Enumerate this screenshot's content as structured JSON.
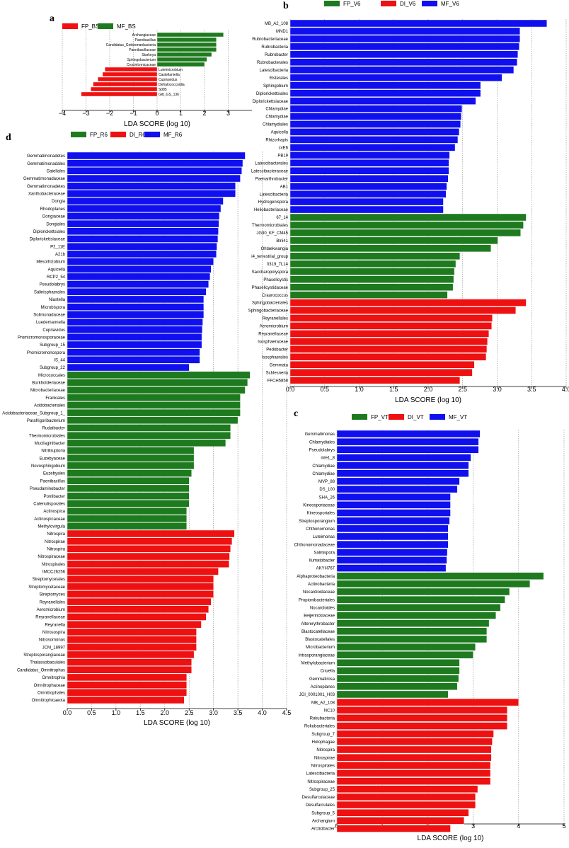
{
  "colors": {
    "FP": "#1e7a1e",
    "DI": "#ee1111",
    "MF": "#1010ee"
  },
  "chart_data": [
    {
      "type": "bar",
      "panel": "a",
      "orientation": "horizontal",
      "legend": [
        {
          "name": "FP_BS",
          "color": "#ee1111"
        },
        {
          "name": "MF_BS",
          "color": "#1e7a1e"
        }
      ],
      "xlabel": "LDA SCORE (log 10)",
      "xlim": [
        -4,
        4
      ],
      "ticks": [
        -4,
        -3,
        -2,
        -1,
        0,
        1,
        2,
        3
      ],
      "grid": true,
      "categories": [
        "Archangiaceae",
        "Paenibacillus",
        "Candidatus_Gottesmanbacteria",
        "Paenibacillaceae",
        "Starkeya",
        "Sphingobacterium",
        "Crocinitomicaceae",
        "Luteimicrobium",
        "Castellaniella",
        "Cupriavidus",
        "Dehalococcoidia",
        "S085",
        "Gitt_GS_136"
      ],
      "values": [
        2.8,
        2.5,
        2.5,
        2.5,
        2.3,
        2.1,
        2.0,
        -2.2,
        -2.3,
        -2.5,
        -2.7,
        -2.8,
        -3.2
      ],
      "colors": [
        "#1e7a1e",
        "#1e7a1e",
        "#1e7a1e",
        "#1e7a1e",
        "#1e7a1e",
        "#1e7a1e",
        "#1e7a1e",
        "#ee1111",
        "#ee1111",
        "#ee1111",
        "#ee1111",
        "#ee1111",
        "#ee1111"
      ]
    },
    {
      "type": "bar",
      "panel": "b",
      "orientation": "horizontal",
      "legend": [
        {
          "name": "FP_V6",
          "color": "#1e7a1e"
        },
        {
          "name": "DI_V6",
          "color": "#ee1111"
        },
        {
          "name": "MF_V6",
          "color": "#1010ee"
        }
      ],
      "xlabel": "LDA SCORE (log 10)",
      "xlim": [
        0,
        4
      ],
      "ticks": [
        "0.0",
        "0.5",
        "1.0",
        "1.5",
        "2.0",
        "2.5",
        "3.0",
        "3.5",
        "4.0"
      ],
      "grid": true,
      "categories": [
        "MB_A2_108",
        "MND1",
        "Rubrobacteriaceae",
        "Rubrobacteria",
        "Rubrobacter",
        "Rubrobacterales",
        "Latescibacteria",
        "Elsterales",
        "Sphingobium",
        "Diplorickettsiales",
        "Diplorickettsiaceae",
        "Chlamydiae",
        "Chlamydiae",
        "Chlamydiales",
        "Aquicella",
        "Rhizorhapis",
        "cvE6",
        "PB19",
        "Latescibacterales",
        "Latescibacteraceae",
        "Paenarthrobacter",
        "AB1",
        "Latescibacteria",
        "Hydrogenispora",
        "Heliobacteriaceae",
        "67_14",
        "Thermomicrobiales",
        "JG30_KF_CM45",
        "Blrii41",
        "Ohtaekwangia",
        "i4_terrestrial_group",
        "0319_7L14",
        "Saccharopolyspora",
        "Phaselicystis",
        "Phaselicystidaceae",
        "Craurococcus",
        "Sphingobacteriales",
        "Sphingobacteriaceae",
        "Reyranellales",
        "Aeromicrobium",
        "Reyranellaceae",
        "Isosphaeraceae",
        "Pedobacter",
        "Isosphaerales",
        "Gemmata",
        "Schlesneria",
        "FFCH5858"
      ],
      "values": [
        3.72,
        3.33,
        3.33,
        3.32,
        3.3,
        3.29,
        3.24,
        3.07,
        2.76,
        2.76,
        2.69,
        2.49,
        2.48,
        2.47,
        2.45,
        2.43,
        2.39,
        2.31,
        2.3,
        2.3,
        2.29,
        2.27,
        2.26,
        2.22,
        2.22,
        3.42,
        3.38,
        3.34,
        3.01,
        2.91,
        2.46,
        2.4,
        2.38,
        2.37,
        2.36,
        2.28,
        3.42,
        3.27,
        2.93,
        2.92,
        2.88,
        2.86,
        2.85,
        2.84,
        2.67,
        2.64,
        2.46
      ],
      "colors": [
        "#1010ee",
        "#1010ee",
        "#1010ee",
        "#1010ee",
        "#1010ee",
        "#1010ee",
        "#1010ee",
        "#1010ee",
        "#1010ee",
        "#1010ee",
        "#1010ee",
        "#1010ee",
        "#1010ee",
        "#1010ee",
        "#1010ee",
        "#1010ee",
        "#1010ee",
        "#1010ee",
        "#1010ee",
        "#1010ee",
        "#1010ee",
        "#1010ee",
        "#1010ee",
        "#1010ee",
        "#1010ee",
        "#1e7a1e",
        "#1e7a1e",
        "#1e7a1e",
        "#1e7a1e",
        "#1e7a1e",
        "#1e7a1e",
        "#1e7a1e",
        "#1e7a1e",
        "#1e7a1e",
        "#1e7a1e",
        "#1e7a1e",
        "#ee1111",
        "#ee1111",
        "#ee1111",
        "#ee1111",
        "#ee1111",
        "#ee1111",
        "#ee1111",
        "#ee1111",
        "#ee1111",
        "#ee1111",
        "#ee1111"
      ]
    },
    {
      "type": "bar",
      "panel": "d",
      "orientation": "horizontal",
      "legend": [
        {
          "name": "FP_R6",
          "color": "#1e7a1e"
        },
        {
          "name": "DI_R6",
          "color": "#ee1111"
        },
        {
          "name": "MF_R6",
          "color": "#1010ee"
        }
      ],
      "xlabel": "LDA SCORE (log 10)",
      "xlim": [
        0,
        4.5
      ],
      "ticks": [
        "0.0",
        "0.5",
        "1.0",
        "1.5",
        "2.0",
        "2.5",
        "3.0",
        "3.5",
        "4.0",
        "4.5"
      ],
      "grid": true,
      "categories": [
        "Gemmatimonadetes",
        "Gemmatimonadales",
        "Gaiellales",
        "Gemmatimonadaceae",
        "Gemmatimonadetes",
        "Xanthobacteraceae",
        "Dongia",
        "Rhodoplanes",
        "Dongiaceae",
        "Dongiales",
        "Diplorickettsiales",
        "Diplorickettsiaceae",
        "P2_11E",
        "A21b",
        "Mesorhizobium",
        "Aquicella",
        "RCP2_54",
        "Pseudolabrys",
        "Salinisphaerales",
        "Niastella",
        "Microbispora",
        "Solimonadaceae",
        "Luedemannella",
        "Cupriavidus",
        "Promicromonosporaceae",
        "Subgroup_15",
        "Promicromonospora",
        "IS_44",
        "Subgroup_22",
        "Micrococcales",
        "Burkholderiaceae",
        "Microbacteriaceae",
        "Frankiales",
        "Acidobacteriales",
        "Acidobacteriaceae_Subgroup_1_",
        "Parafrigoribacterium",
        "Rudaibacter",
        "Thermomicrobiales",
        "Mucilaginibacter",
        "Nitriliruptoria",
        "Euzebyaceae",
        "Novosphingobium",
        "Euzebyales",
        "Paenibacillus",
        "Pseudaminobacter",
        "Pontibacter",
        "Catenulisporales",
        "Actinospica",
        "Actinospicaceae",
        "Methylovirgula",
        "Nitrospira",
        "Nitrospirae",
        "Nitrospira",
        "Nitrospiraceae",
        "Nitrospirales",
        "IMCC26256",
        "Streptomycetales",
        "Streptomycetaceae",
        "Streptomyces",
        "Reyranellales",
        "Aeromicrobium",
        "Reyranellaceae",
        "Reyranella",
        "Nitrosospira",
        "Nitrosomonas",
        "JCM_18997",
        "Streptosporangiaceae",
        "Thalassobaculales",
        "Candidatus_Omnitrophus",
        "Omnitrophia",
        "Omnitrophaceae",
        "Omnitrophales",
        "Omnitrophicaeota"
      ],
      "values": [
        3.65,
        3.6,
        3.58,
        3.55,
        3.45,
        3.45,
        3.2,
        3.15,
        3.12,
        3.11,
        3.1,
        3.09,
        3.07,
        3.06,
        3.0,
        2.95,
        2.93,
        2.9,
        2.85,
        2.8,
        2.8,
        2.8,
        2.78,
        2.77,
        2.76,
        2.76,
        2.72,
        2.72,
        2.5,
        3.75,
        3.7,
        3.65,
        3.55,
        3.55,
        3.55,
        3.5,
        3.35,
        3.35,
        3.25,
        2.6,
        2.6,
        2.6,
        2.55,
        2.5,
        2.5,
        2.5,
        2.5,
        2.45,
        2.45,
        2.45,
        3.43,
        3.38,
        3.35,
        3.33,
        3.32,
        3.1,
        3.0,
        3.0,
        3.0,
        2.95,
        2.9,
        2.85,
        2.75,
        2.65,
        2.65,
        2.65,
        2.6,
        2.55,
        2.55,
        2.45,
        2.45,
        2.45,
        2.4
      ],
      "colors": [
        "#1010ee",
        "#1010ee",
        "#1010ee",
        "#1010ee",
        "#1010ee",
        "#1010ee",
        "#1010ee",
        "#1010ee",
        "#1010ee",
        "#1010ee",
        "#1010ee",
        "#1010ee",
        "#1010ee",
        "#1010ee",
        "#1010ee",
        "#1010ee",
        "#1010ee",
        "#1010ee",
        "#1010ee",
        "#1010ee",
        "#1010ee",
        "#1010ee",
        "#1010ee",
        "#1010ee",
        "#1010ee",
        "#1010ee",
        "#1010ee",
        "#1010ee",
        "#1010ee",
        "#1e7a1e",
        "#1e7a1e",
        "#1e7a1e",
        "#1e7a1e",
        "#1e7a1e",
        "#1e7a1e",
        "#1e7a1e",
        "#1e7a1e",
        "#1e7a1e",
        "#1e7a1e",
        "#1e7a1e",
        "#1e7a1e",
        "#1e7a1e",
        "#1e7a1e",
        "#1e7a1e",
        "#1e7a1e",
        "#1e7a1e",
        "#1e7a1e",
        "#1e7a1e",
        "#1e7a1e",
        "#1e7a1e",
        "#ee1111",
        "#ee1111",
        "#ee1111",
        "#ee1111",
        "#ee1111",
        "#ee1111",
        "#ee1111",
        "#ee1111",
        "#ee1111",
        "#ee1111",
        "#ee1111",
        "#ee1111",
        "#ee1111",
        "#ee1111",
        "#ee1111",
        "#ee1111",
        "#ee1111",
        "#ee1111",
        "#ee1111",
        "#ee1111",
        "#ee1111",
        "#ee1111",
        "#ee1111"
      ]
    },
    {
      "type": "bar",
      "panel": "c",
      "orientation": "horizontal",
      "legend": [
        {
          "name": "FP_VT",
          "color": "#1e7a1e"
        },
        {
          "name": "DI_VT",
          "color": "#ee1111"
        },
        {
          "name": "MF_VT",
          "color": "#1010ee"
        }
      ],
      "xlabel": "LDA SCORE (log 10)",
      "xlim": [
        0,
        5
      ],
      "ticks": [
        "0",
        "1",
        "2",
        "3",
        "4",
        "5"
      ],
      "grid": true,
      "categories": [
        "Gemmatimonas",
        "Chlamydiales",
        "Pseudolabrys",
        "mle1_8",
        "Chlamydiae",
        "Chlamydiae",
        "MVP_88",
        "DS_100",
        "SHA_26",
        "Kineosporiaceae",
        "Kineosporiales",
        "Streptosporangium",
        "Chthonomonas",
        "Luteimonas",
        "Chthonomonadaceae",
        "Salinispora",
        "Ilumatobacter",
        "AKYH767",
        "Alphaproteobacteria",
        "Actinobacteria",
        "Nocardioidaceae",
        "Propionibacteriales",
        "Nocardioides",
        "Beijerinckiaceae",
        "Altererythrobacter",
        "Blastocatellaceae",
        "Blastocatellales",
        "Microbacterium",
        "Intrasporangiaceae",
        "Methylobacterium",
        "Cnuella",
        "Gemmatirosa",
        "Actinoplanes",
        "JGI_0001001_H03",
        "MB_A2_108",
        "NC10",
        "Rokubacteria",
        "Rokubacteriales",
        "Subgroup_7",
        "Holophagae",
        "Nitrospira",
        "Nitrospirae",
        "Nitrospirales",
        "Latescibacteria",
        "Nitrospiraceae",
        "Subgroup_25",
        "Desulfarculaceae",
        "Desulfarculales",
        "Subgroup_5",
        "Archangium",
        "Arcticibacter"
      ],
      "values": [
        3.15,
        3.12,
        3.12,
        2.95,
        2.9,
        2.9,
        2.7,
        2.65,
        2.5,
        2.5,
        2.5,
        2.48,
        2.45,
        2.45,
        2.45,
        2.43,
        2.42,
        2.4,
        4.55,
        4.25,
        3.8,
        3.7,
        3.6,
        3.5,
        3.35,
        3.3,
        3.3,
        3.05,
        3.0,
        2.7,
        2.7,
        2.68,
        2.65,
        2.45,
        4.0,
        3.75,
        3.75,
        3.75,
        3.45,
        3.42,
        3.4,
        3.4,
        3.38,
        3.38,
        3.38,
        3.1,
        3.05,
        3.05,
        2.9,
        2.8,
        2.5
      ],
      "colors": [
        "#1010ee",
        "#1010ee",
        "#1010ee",
        "#1010ee",
        "#1010ee",
        "#1010ee",
        "#1010ee",
        "#1010ee",
        "#1010ee",
        "#1010ee",
        "#1010ee",
        "#1010ee",
        "#1010ee",
        "#1010ee",
        "#1010ee",
        "#1010ee",
        "#1010ee",
        "#1010ee",
        "#1e7a1e",
        "#1e7a1e",
        "#1e7a1e",
        "#1e7a1e",
        "#1e7a1e",
        "#1e7a1e",
        "#1e7a1e",
        "#1e7a1e",
        "#1e7a1e",
        "#1e7a1e",
        "#1e7a1e",
        "#1e7a1e",
        "#1e7a1e",
        "#1e7a1e",
        "#1e7a1e",
        "#1e7a1e",
        "#ee1111",
        "#ee1111",
        "#ee1111",
        "#ee1111",
        "#ee1111",
        "#ee1111",
        "#ee1111",
        "#ee1111",
        "#ee1111",
        "#ee1111",
        "#ee1111",
        "#ee1111",
        "#ee1111",
        "#ee1111",
        "#ee1111",
        "#ee1111",
        "#ee1111"
      ]
    }
  ]
}
